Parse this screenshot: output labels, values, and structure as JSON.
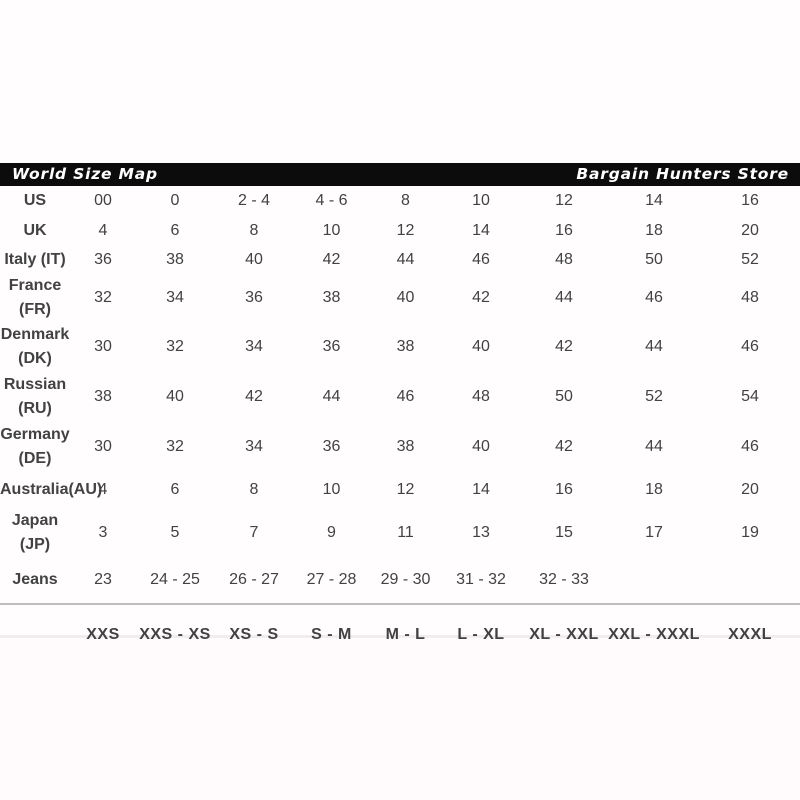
{
  "header": {
    "left_title": "World Size Map",
    "right_title": "Bargain Hunters Store"
  },
  "size_table": {
    "rows": [
      {
        "label": "US",
        "values": [
          "00",
          "0",
          "2 - 4",
          "4 - 6",
          "8",
          "10",
          "12",
          "14",
          "16"
        ]
      },
      {
        "label": "UK",
        "values": [
          "4",
          "6",
          "8",
          "10",
          "12",
          "14",
          "16",
          "18",
          "20"
        ]
      },
      {
        "label": "Italy (IT)",
        "values": [
          "36",
          "38",
          "40",
          "42",
          "44",
          "46",
          "48",
          "50",
          "52"
        ]
      },
      {
        "label": "France (FR)",
        "values": [
          "32",
          "34",
          "36",
          "38",
          "40",
          "42",
          "44",
          "46",
          "48"
        ]
      },
      {
        "label": "Denmark\n(DK)",
        "values": [
          "30",
          "32",
          "34",
          "36",
          "38",
          "40",
          "42",
          "44",
          "46"
        ]
      },
      {
        "label": "Russian (RU)",
        "values": [
          "38",
          "40",
          "42",
          "44",
          "46",
          "48",
          "50",
          "52",
          "54"
        ]
      },
      {
        "label": "Germany\n(DE)",
        "values": [
          "30",
          "32",
          "34",
          "36",
          "38",
          "40",
          "42",
          "44",
          "46"
        ]
      },
      {
        "label": "Australia(AU)",
        "values": [
          "4",
          "6",
          "8",
          "10",
          "12",
          "14",
          "16",
          "18",
          "20"
        ]
      },
      {
        "label": "Japan (JP)",
        "values": [
          "3",
          "5",
          "7",
          "9",
          "11",
          "13",
          "15",
          "17",
          "19"
        ]
      },
      {
        "label": "Jeans",
        "values": [
          "23",
          "24 - 25",
          "26 - 27",
          "27 - 28",
          "29 - 30",
          "31 - 32",
          "32 - 33",
          "",
          ""
        ]
      }
    ],
    "footer_sizes": [
      "XXS",
      "XXS - XS",
      "XS - S",
      "S - M",
      "M - L",
      "L - XL",
      "XL - XXL",
      "XXL - XXXL",
      "XXXL"
    ]
  },
  "colors": {
    "page_background": "#fffdfd",
    "lower_background": "#fffafb",
    "bottom_line": "#f1eded",
    "bar_color": "#0c0c0c",
    "bar_text_color": "#ffffff",
    "text_color": "#424242",
    "label_color": "#3c3c3c",
    "footer_color": "#3a3a3a",
    "separator_color": "#bdbdbd"
  }
}
